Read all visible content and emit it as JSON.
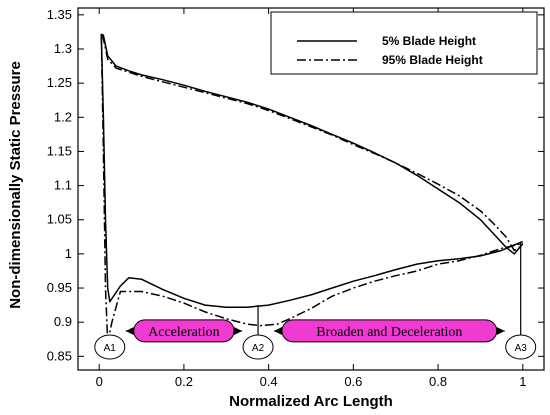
{
  "chart_data": {
    "type": "line",
    "xlabel": "Normalized Arc Length",
    "ylabel": "Non-dimensionally Static Pressure",
    "xlim": [
      -0.05,
      1.05
    ],
    "ylim": [
      0.83,
      1.36
    ],
    "xticks": [
      0,
      0.2,
      0.4,
      0.6,
      0.8,
      1
    ],
    "xtick_labels": [
      "0",
      "0.2",
      "0.4",
      "0.6",
      "0.8",
      "1"
    ],
    "yticks": [
      0.85,
      0.9,
      0.95,
      1,
      1.05,
      1.1,
      1.15,
      1.2,
      1.25,
      1.3,
      1.35
    ],
    "ytick_labels": [
      "0.85",
      "0.9",
      "0.95",
      "1",
      "1.05",
      "1.1",
      "1.15",
      "1.2",
      "1.25",
      "1.3",
      "1.35"
    ],
    "grid": false,
    "legend_position": "top-right",
    "series": [
      {
        "name": "5% Blade Height",
        "style": "solid",
        "pressure_side": {
          "x": [
            0.005,
            0.01,
            0.02,
            0.04,
            0.07,
            0.1,
            0.15,
            0.2,
            0.25,
            0.3,
            0.35,
            0.4,
            0.45,
            0.5,
            0.55,
            0.6,
            0.65,
            0.7,
            0.75,
            0.8,
            0.85,
            0.9,
            0.93,
            0.96,
            0.98,
            1.0
          ],
          "y": [
            1.322,
            1.32,
            1.29,
            1.275,
            1.268,
            1.262,
            1.255,
            1.247,
            1.238,
            1.23,
            1.222,
            1.212,
            1.2,
            1.188,
            1.175,
            1.162,
            1.148,
            1.133,
            1.115,
            1.095,
            1.075,
            1.05,
            1.03,
            1.01,
            1.0,
            1.015
          ]
        },
        "suction_side": {
          "x": [
            0.005,
            0.01,
            0.015,
            0.02,
            0.025,
            0.05,
            0.07,
            0.1,
            0.15,
            0.2,
            0.25,
            0.3,
            0.35,
            0.4,
            0.45,
            0.5,
            0.55,
            0.6,
            0.65,
            0.7,
            0.75,
            0.8,
            0.85,
            0.9,
            0.95,
            0.975,
            1.0
          ],
          "y": [
            1.322,
            1.2,
            1.05,
            0.95,
            0.93,
            0.953,
            0.965,
            0.963,
            0.948,
            0.935,
            0.925,
            0.922,
            0.922,
            0.925,
            0.932,
            0.94,
            0.95,
            0.96,
            0.968,
            0.977,
            0.985,
            0.99,
            0.993,
            0.997,
            1.005,
            1.012,
            1.018
          ]
        }
      },
      {
        "name": "95% Blade Height",
        "style": "dashdot",
        "pressure_side": {
          "x": [
            0.005,
            0.01,
            0.02,
            0.04,
            0.07,
            0.1,
            0.15,
            0.2,
            0.25,
            0.3,
            0.35,
            0.4,
            0.45,
            0.5,
            0.55,
            0.6,
            0.65,
            0.7,
            0.75,
            0.8,
            0.85,
            0.9,
            0.93,
            0.96,
            0.98,
            1.0
          ],
          "y": [
            1.32,
            1.315,
            1.285,
            1.272,
            1.266,
            1.26,
            1.252,
            1.244,
            1.236,
            1.228,
            1.22,
            1.21,
            1.198,
            1.186,
            1.174,
            1.16,
            1.147,
            1.133,
            1.118,
            1.102,
            1.085,
            1.063,
            1.045,
            1.025,
            1.005,
            1.012
          ]
        },
        "suction_side": {
          "x": [
            0.005,
            0.01,
            0.015,
            0.02,
            0.03,
            0.05,
            0.1,
            0.15,
            0.2,
            0.25,
            0.3,
            0.35,
            0.38,
            0.42,
            0.45,
            0.5,
            0.55,
            0.6,
            0.65,
            0.7,
            0.75,
            0.8,
            0.85,
            0.9,
            0.95,
            1.0
          ],
          "y": [
            1.32,
            1.15,
            0.95,
            0.87,
            0.9,
            0.945,
            0.945,
            0.938,
            0.928,
            0.915,
            0.905,
            0.897,
            0.895,
            0.897,
            0.905,
            0.92,
            0.938,
            0.95,
            0.96,
            0.968,
            0.975,
            0.985,
            0.99,
            0.998,
            1.008,
            1.015
          ]
        }
      }
    ],
    "annotations": {
      "markers": [
        {
          "label": "A1",
          "x": 0.025
        },
        {
          "label": "A2",
          "x": 0.375
        },
        {
          "label": "A3",
          "x": 0.995
        }
      ],
      "regions": [
        {
          "label": "Acceleration",
          "from": 0.025,
          "to": 0.375,
          "y": 0.88,
          "color": "#f03ad0"
        },
        {
          "label": "Broaden and Deceleration",
          "from": 0.375,
          "to": 0.995,
          "y": 0.88,
          "color": "#f03ad0"
        }
      ],
      "guide_lines": [
        {
          "x": 0.375,
          "y_top": 0.925
        },
        {
          "x": 0.995,
          "y_top": 1.018
        }
      ]
    }
  }
}
